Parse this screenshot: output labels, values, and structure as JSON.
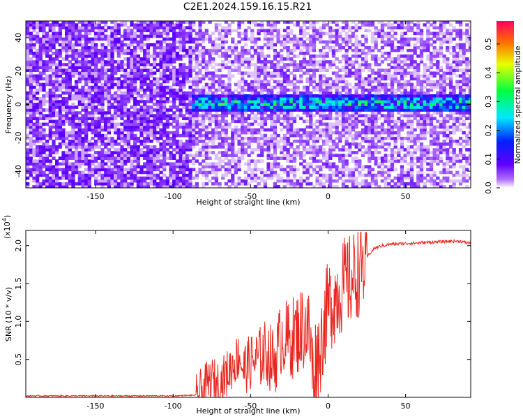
{
  "title": "C2E1.2024.159.16.15.R21",
  "chart_data": [
    {
      "type": "heatmap",
      "title": "C2E1.2024.159.16.15.R21",
      "xlabel": "Height of straight line (km)",
      "ylabel": "Frequency (Hz)",
      "xlim": [
        -195,
        92
      ],
      "ylim": [
        -50,
        50
      ],
      "xticks": [
        -150,
        -100,
        -50,
        0,
        50
      ],
      "yticks": [
        -40,
        -20,
        0,
        20,
        40
      ],
      "colorbar": {
        "label": "Normalized spectral amplitude",
        "range": [
          0.0,
          0.58
        ],
        "ticks": [
          0.0,
          0.1,
          0.2,
          0.3,
          0.4,
          0.5
        ],
        "colormap": "rainbow",
        "colors": [
          "#ffffff",
          "#8000ff",
          "#0000ff",
          "#00ffff",
          "#00ff00",
          "#ffff00",
          "#ff8000",
          "#ff0040"
        ]
      },
      "regions": [
        {
          "name": "dense noise",
          "x": [
            -195,
            -90
          ],
          "freq_spread_hz": 50,
          "typical_amplitude": 0.04
        },
        {
          "name": "signal band",
          "x": [
            -90,
            92
          ],
          "center_freq_hz": 0,
          "band_width_hz": 5,
          "peak_amplitude": 0.35
        }
      ]
    },
    {
      "type": "line",
      "xlabel": "Height of straight line (km)",
      "ylabel": "SNR (10 * v/v)",
      "yscale_label": "(x10",
      "yscale_exp": "4",
      "xlim": [
        -195,
        92
      ],
      "ylim": [
        0,
        2.2
      ],
      "xticks": [
        -150,
        -100,
        -50,
        0,
        50
      ],
      "yticks": [
        0.5,
        1.0,
        1.5,
        2.0
      ],
      "ytick_labels": [
        "0.5",
        "1.0",
        "1.5",
        "2.0"
      ],
      "color": "#e8251e",
      "series": [
        {
          "x": [
            -195,
            -150,
            -100,
            -85,
            -80,
            -75,
            -70,
            -65,
            -60,
            -57,
            -55,
            -50,
            -45,
            -40,
            -35,
            -30,
            -25,
            -20,
            -15,
            -12,
            -10,
            -5,
            -3,
            0,
            5,
            10,
            15,
            20,
            25,
            30,
            35,
            40,
            50,
            60,
            70,
            80,
            85,
            92
          ],
          "y": [
            0.02,
            0.02,
            0.02,
            0.03,
            0.15,
            0.25,
            0.2,
            0.35,
            0.5,
            0.6,
            0.4,
            0.5,
            0.55,
            0.65,
            0.5,
            0.85,
            0.8,
            0.9,
            1.0,
            0.9,
            0.4,
            0.7,
            1.0,
            1.25,
            1.4,
            1.55,
            1.6,
            1.75,
            1.85,
            1.97,
            2.0,
            2.02,
            2.03,
            2.04,
            2.05,
            2.06,
            2.06,
            2.03
          ]
        }
      ]
    }
  ]
}
